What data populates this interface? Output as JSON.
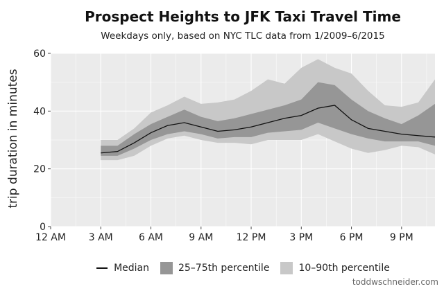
{
  "chart_data": {
    "type": "area",
    "title": "Prospect Heights to JFK Taxi Travel Time",
    "subtitle": "Weekdays only, based on NYC TLC data from 1/2009–6/2015",
    "xlabel": "",
    "ylabel": "trip duration in minutes",
    "x_tick_labels": [
      "12 AM",
      "3 AM",
      "6 AM",
      "9 AM",
      "12 PM",
      "3 PM",
      "6 PM",
      "9 PM"
    ],
    "x_tick_values": [
      0,
      3,
      6,
      9,
      12,
      15,
      18,
      21
    ],
    "xlim": [
      0,
      23
    ],
    "y_tick_labels": [
      "0",
      "20",
      "40",
      "60"
    ],
    "y_tick_values": [
      0,
      20,
      40,
      60
    ],
    "ylim": [
      0,
      60
    ],
    "grid": true,
    "legend_position": "bottom",
    "x": [
      3,
      4,
      5,
      6,
      7,
      8,
      9,
      10,
      11,
      12,
      13,
      14,
      15,
      16,
      17,
      18,
      19,
      20,
      21,
      22,
      23
    ],
    "series": [
      {
        "name": "Median",
        "values": [
          25.5,
          26,
          29,
          32.5,
          35,
          36,
          34.5,
          33,
          33.5,
          34.5,
          36,
          37.5,
          38.5,
          41,
          42,
          37,
          34,
          33,
          32,
          31.5,
          31
        ]
      },
      {
        "name": "25–75th percentile",
        "lower": [
          24.5,
          24.5,
          27,
          30,
          32,
          33,
          32,
          30.5,
          31,
          31,
          32.5,
          33,
          33.5,
          36,
          34,
          32,
          30.5,
          29.5,
          29.5,
          29.5,
          28
        ],
        "upper": [
          28,
          28,
          32,
          35.5,
          38,
          40.5,
          38,
          36.5,
          37.5,
          39,
          40.5,
          42,
          44,
          50,
          49,
          44,
          40,
          37.5,
          35.5,
          38.5,
          42.5
        ]
      },
      {
        "name": "10–90th percentile",
        "lower": [
          23,
          23,
          24.5,
          28,
          30.5,
          31.5,
          30,
          29,
          29,
          28.5,
          30,
          30,
          30,
          32,
          29.5,
          27,
          25.5,
          26.5,
          28,
          27.5,
          25
        ],
        "upper": [
          30,
          30,
          34,
          39.5,
          42,
          45,
          42.5,
          43,
          44,
          47,
          51,
          49.5,
          55,
          58,
          55,
          53,
          47,
          42,
          41.5,
          43,
          51
        ]
      }
    ]
  },
  "colors": {
    "median": "#111111",
    "iqr_band": "#969696",
    "outer_band": "#c8c8c8",
    "panel_background": "#ebebeb",
    "grid": "#ffffff"
  },
  "legend": {
    "median_label": "Median",
    "iqr_label": "25–75th percentile",
    "outer_label": "10–90th percentile"
  },
  "credit": "toddwschneider.com"
}
